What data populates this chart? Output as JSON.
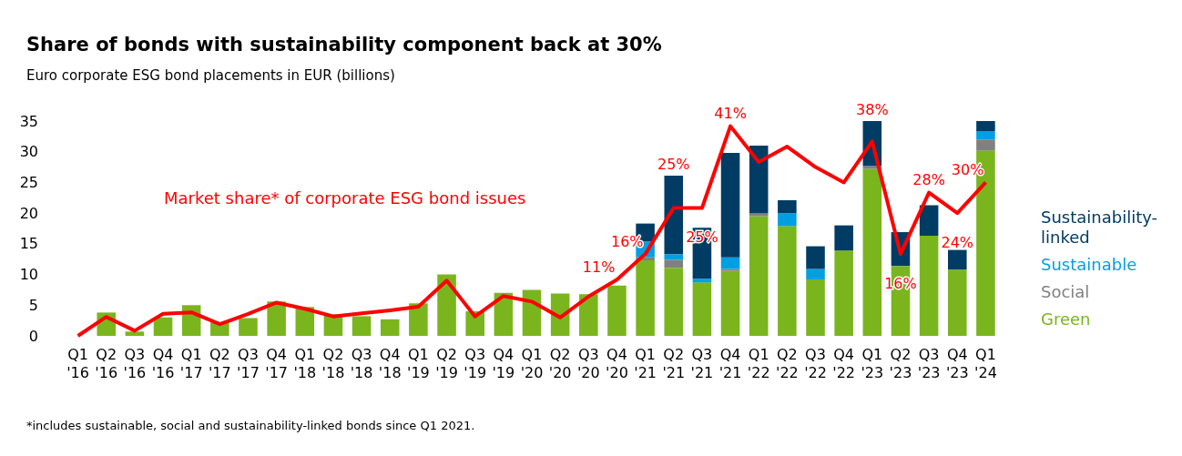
{
  "chart_data": {
    "type": "bar",
    "title": "Share of bonds with sustainability component back at 30%",
    "subtitle": "Euro corporate ESG bond placements in EUR (billions)",
    "categories": [
      "Q1 '16",
      "Q2 '16",
      "Q3 '16",
      "Q4 '16",
      "Q1 '17",
      "Q2 '17",
      "Q3 '17",
      "Q4 '17",
      "Q1 '18",
      "Q2 '18",
      "Q3 '18",
      "Q4 '18",
      "Q1 '19",
      "Q2 '19",
      "Q3 '19",
      "Q4 '19",
      "Q1 '20",
      "Q2 '20",
      "Q3 '20",
      "Q4 '20",
      "Q1 '21",
      "Q2 '21",
      "Q3 '21",
      "Q4 '21",
      "Q1 '22",
      "Q2 '22",
      "Q3 '22",
      "Q4 '22",
      "Q1 '23",
      "Q2 '23",
      "Q3 '23",
      "Q4 '23",
      "Q1 '24"
    ],
    "stacked": true,
    "series": [
      {
        "name": "Green",
        "color": "#7ab51d",
        "values": [
          0,
          3.8,
          0.7,
          3.0,
          5.0,
          2.2,
          2.9,
          5.6,
          4.7,
          3.5,
          3.2,
          2.7,
          5.3,
          10.0,
          4.0,
          7.0,
          7.5,
          6.9,
          6.8,
          8.2,
          12.3,
          11.1,
          8.7,
          10.6,
          19.5,
          17.9,
          9.2,
          13.9,
          27.2,
          11.4,
          16.3,
          10.8,
          30.2
        ]
      },
      {
        "name": "Social",
        "color": "#808080",
        "values": [
          null,
          null,
          null,
          null,
          null,
          null,
          null,
          null,
          null,
          null,
          null,
          null,
          null,
          null,
          null,
          null,
          null,
          null,
          null,
          null,
          0.5,
          1.3,
          null,
          0.3,
          0.5,
          null,
          null,
          null,
          0.5,
          null,
          null,
          null,
          1.8
        ]
      },
      {
        "name": "Sustainable",
        "color": "#009fe3",
        "values": [
          null,
          null,
          null,
          null,
          null,
          null,
          null,
          null,
          null,
          null,
          null,
          null,
          null,
          null,
          null,
          null,
          null,
          null,
          null,
          null,
          2.6,
          0.9,
          0.6,
          1.9,
          null,
          2.1,
          1.7,
          null,
          null,
          null,
          null,
          null,
          1.3
        ]
      },
      {
        "name": "Sustainability-linked",
        "color": "#003c64",
        "values": [
          null,
          null,
          null,
          null,
          null,
          null,
          null,
          null,
          null,
          null,
          null,
          null,
          null,
          null,
          null,
          null,
          null,
          null,
          null,
          null,
          2.9,
          12.8,
          8.3,
          17.0,
          11.0,
          2.1,
          3.7,
          4.1,
          7.3,
          5.5,
          5.0,
          3.2,
          1.7
        ]
      },
      {
        "name": "Market share* of corporate ESG bond issues",
        "type": "line",
        "axis": "y2",
        "color": "#ff0000",
        "values": [
          0,
          3.7,
          1.0,
          4.3,
          4.6,
          2.3,
          4.3,
          6.5,
          5.3,
          3.8,
          4.4,
          5.0,
          5.7,
          10.8,
          3.8,
          7.8,
          6.7,
          3.6,
          7.7,
          11,
          16,
          25,
          25,
          41,
          34,
          37,
          33,
          30,
          38,
          16,
          28,
          24,
          30
        ],
        "value_labels": [
          null,
          null,
          null,
          null,
          null,
          null,
          null,
          null,
          null,
          null,
          null,
          null,
          null,
          null,
          null,
          null,
          null,
          null,
          null,
          "11%",
          "16%",
          "25%",
          "25%",
          "41%",
          null,
          null,
          null,
          null,
          "38%",
          "16%",
          "28%",
          "24%",
          "30%"
        ]
      }
    ],
    "ylim": [
      0,
      35
    ],
    "yticks": [
      0,
      5,
      10,
      15,
      20,
      25,
      30,
      35
    ],
    "y2lim": [
      0,
      42
    ],
    "grid": false,
    "legend": "right",
    "marker": "none",
    "annotations": [
      "*includes sustainable, social and sustainability-linked bonds since Q1 2021."
    ]
  }
}
